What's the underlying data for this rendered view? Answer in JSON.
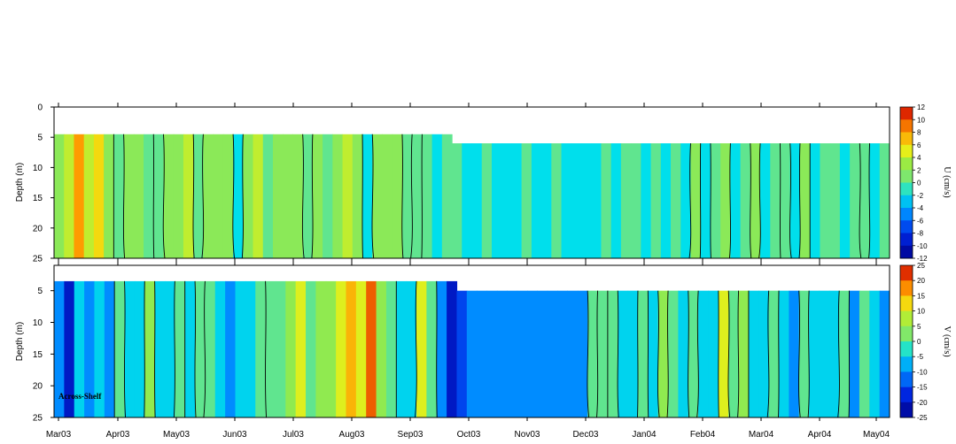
{
  "chart_data": {
    "type": "heatmap",
    "x_ticks": [
      "Mar03",
      "Apr03",
      "May03",
      "Jun03",
      "Jul03",
      "Aug03",
      "Sep03",
      "Oct03",
      "Nov03",
      "Dec03",
      "Jan04",
      "Feb04",
      "Mar04",
      "Apr04",
      "May04"
    ],
    "panels": [
      {
        "id": "u",
        "ylabel": "Depth (m)",
        "y_ticks": [
          "0",
          "5",
          "10",
          "15",
          "20",
          "25"
        ],
        "ylim": [
          0,
          25
        ],
        "colorbar_label": "U (cm/s)",
        "colorbar_ticks": [
          "12",
          "10",
          "8",
          "6",
          "4",
          "2",
          "0",
          "-2",
          "-4",
          "-6",
          "-8",
          "-10",
          "-12"
        ],
        "annotation": "",
        "data_top_depth_before_oct03": 4.5,
        "data_top_depth_after_oct03": 6,
        "columns": [
          2,
          4,
          8,
          3,
          5,
          2,
          -1,
          2,
          1,
          0,
          -1,
          2,
          1,
          3,
          -1,
          1,
          2,
          1,
          -2,
          1,
          3,
          0,
          1,
          2,
          1,
          -1,
          2,
          0,
          1,
          3,
          2,
          -3,
          1,
          2,
          1,
          -1,
          0,
          -1,
          -2,
          -1,
          -1,
          -3,
          -2,
          -1,
          -2,
          -3,
          -2,
          -1,
          -2,
          -3,
          -1,
          -2,
          -2,
          -3,
          -2,
          -1,
          -2,
          -1,
          -1,
          -2,
          -1,
          -3,
          -1,
          -2,
          1,
          -2,
          0,
          1,
          -2,
          -1,
          1,
          -3,
          -1,
          0,
          -2,
          1,
          -2,
          -1,
          -1,
          -3,
          -1,
          0,
          -2,
          -1
        ]
      },
      {
        "id": "v",
        "ylabel": "Depth (m)",
        "y_ticks": [
          "5",
          "10",
          "15",
          "20",
          "25"
        ],
        "ylim": [
          1,
          25
        ],
        "colorbar_label": "V (cm/s)",
        "colorbar_ticks": [
          "25",
          "20",
          "15",
          "10",
          "5",
          "0",
          "-5",
          "-10",
          "-15",
          "-20",
          "-25"
        ],
        "annotation": "Across-Shelf",
        "data_top_depth_before_oct03": 3.5,
        "data_top_depth_after_oct03": 5,
        "columns": [
          -10,
          -18,
          -5,
          -8,
          -4,
          -12,
          2,
          -5,
          -3,
          4,
          -3,
          -4,
          0,
          -6,
          2,
          -2,
          -4,
          -8,
          -3,
          -4,
          -2,
          1,
          2,
          3,
          11,
          2,
          3,
          5,
          10,
          14,
          8,
          20,
          5,
          2,
          -3,
          -5,
          8,
          2,
          -12,
          -22,
          -14,
          -10,
          -8,
          -9,
          -10,
          -9,
          -8,
          -9,
          -11,
          -10,
          -9,
          -10,
          -8,
          1,
          -2,
          2,
          -5,
          -3,
          1,
          -6,
          3,
          -2,
          -5,
          1,
          -3,
          -4,
          8,
          -2,
          3,
          -6,
          -3,
          1,
          -4,
          -10,
          1,
          -5,
          -7,
          -3,
          1,
          -8,
          -2,
          -5,
          -12
        ]
      }
    ]
  }
}
